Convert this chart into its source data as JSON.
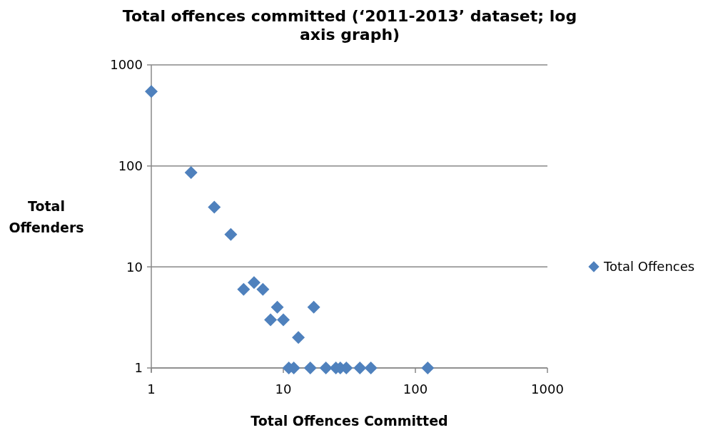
{
  "chart_data": {
    "type": "scatter",
    "title": "Total offences committed (‘2011-2013’ dataset; log axis graph)",
    "xlabel": "Total Offences Committed",
    "ylabel": "Total Offenders",
    "series": [
      {
        "name": "Total Offences",
        "color": "#4f81bd",
        "x": [
          1,
          2,
          3,
          4,
          5,
          6,
          7,
          8,
          9,
          10,
          13,
          17,
          11,
          12,
          16,
          21,
          25,
          27,
          30,
          38,
          46,
          124
        ],
        "values": [
          545,
          86,
          39,
          21,
          6,
          7,
          6,
          3,
          4,
          3,
          2,
          4,
          1,
          1,
          1,
          1,
          1,
          1,
          1,
          1,
          1,
          1
        ]
      }
    ],
    "log": "xy",
    "xlim": [
      1,
      1000
    ],
    "ylim": [
      1,
      1000
    ],
    "xticks": [
      1,
      10,
      100,
      1000
    ],
    "yticks": [
      1,
      10,
      100,
      1000
    ],
    "grid": "y",
    "legend": "right",
    "marker": "diamond"
  }
}
